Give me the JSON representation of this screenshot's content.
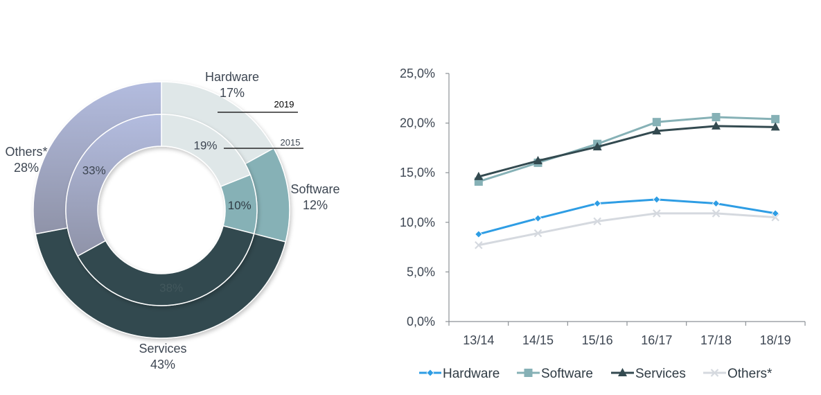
{
  "chart_data": [
    {
      "type": "pie",
      "variant": "double-donut",
      "rings": [
        {
          "name": "2019",
          "label": "2019",
          "slices": [
            {
              "name": "Hardware",
              "value": 17,
              "label": "17%"
            },
            {
              "name": "Software",
              "value": 12,
              "label": "12%"
            },
            {
              "name": "Services",
              "value": 43,
              "label": "43%"
            },
            {
              "name": "Others*",
              "value": 28,
              "label": "28%"
            }
          ]
        },
        {
          "name": "2015",
          "label": "2015",
          "slices": [
            {
              "name": "Hardware",
              "value": 19,
              "label": "19%"
            },
            {
              "name": "Software",
              "value": 10,
              "label": "10%"
            },
            {
              "name": "Services",
              "value": 38,
              "label": "38%"
            },
            {
              "name": "Others*",
              "value": 33,
              "label": "33%"
            }
          ]
        }
      ],
      "colors": {
        "Hardware": "#dfe7e8",
        "Software": "#86b1b6",
        "Services": "#334a50",
        "Others*": "#a4a9c9"
      }
    },
    {
      "type": "line",
      "categories": [
        "13/14",
        "14/15",
        "15/16",
        "16/17",
        "17/18",
        "18/19"
      ],
      "series": [
        {
          "name": "Hardware",
          "values": [
            8.8,
            10.4,
            11.9,
            12.3,
            11.9,
            10.9
          ],
          "color": "#2e9de4",
          "marker": "diamond"
        },
        {
          "name": "Software",
          "values": [
            14.1,
            16.0,
            17.9,
            20.1,
            20.6,
            20.4
          ],
          "color": "#86b1b6",
          "marker": "square"
        },
        {
          "name": "Services",
          "values": [
            14.6,
            16.2,
            17.6,
            19.2,
            19.7,
            19.6
          ],
          "color": "#334a50",
          "marker": "triangle"
        },
        {
          "name": "Others*",
          "values": [
            7.7,
            8.9,
            10.1,
            10.9,
            10.9,
            10.5
          ],
          "color": "#d5d9df",
          "marker": "x"
        }
      ],
      "ylim": [
        0,
        25
      ],
      "yticks": [
        "0,0%",
        "5,0%",
        "10,0%",
        "15,0%",
        "20,0%",
        "25,0%"
      ],
      "ytick_values": [
        0,
        5,
        10,
        15,
        20,
        25
      ],
      "title": "",
      "xlabel": "",
      "ylabel": "",
      "legend": "bottom"
    }
  ]
}
